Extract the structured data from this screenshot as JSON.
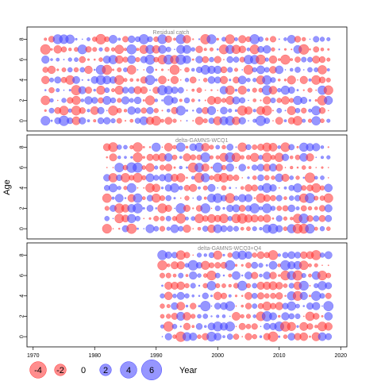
{
  "chart_data": {
    "type": "scatter",
    "subtype": "residual-bubble",
    "xlabel": "Year",
    "ylabel": "Age",
    "xlim": [
      1969,
      2021
    ],
    "ylim": [
      -1,
      9.2
    ],
    "x_ticks": [
      1970,
      1980,
      1990,
      2000,
      2010,
      2020
    ],
    "y_ticks": [
      0,
      2,
      4,
      6,
      8
    ],
    "ages": [
      0,
      1,
      2,
      3,
      4,
      5,
      6,
      7,
      8
    ],
    "colors": {
      "positive": "#4040ff",
      "negative": "#ff3030"
    },
    "legend": {
      "values": [
        "-4",
        "-2",
        "0",
        "2",
        "4",
        "6"
      ],
      "label": "Year"
    },
    "panels": [
      {
        "title": "Residual catch",
        "years": [
          1972,
          2018
        ],
        "grid": [
          "C13579bdfhjlnprtvxACEGIKMOQSU",
          "Ep3ah7eR2gB0Rq4bDtQ8iEjNo58dA",
          "ia6fG4gM9hdLk5Dc9Nq0aKt3H7jf2",
          "NlbpQn2e8Ck0LqA4ePt3iKd9r6jG1",
          "rg5Rk7aSi0QdP3Ms2jH8nA6cFe4tL",
          "3bNqKh6tD9mA2pLr7fS0cG5kEi8Qo",
          "Gd8sPa1nL4kR3iB7qE0jM9tC5hF2e",
          "b6pK3rD9gA0mS5hQ2eL8tN1cJ7fi4",
          "s2Qm9dF4kB7aR1nE8pT3jG0hL6cM5"
        ],
        "note": "grid rows are ages 0-8; each char encodes a residual for consecutive years"
      },
      {
        "title": "delta-GAMNS-WCQ1",
        "years": [
          1982,
          2018
        ]
      },
      {
        "title": "delta-GAMNS-WCQ3+Q4",
        "years": [
          1991,
          2018
        ]
      }
    ]
  }
}
